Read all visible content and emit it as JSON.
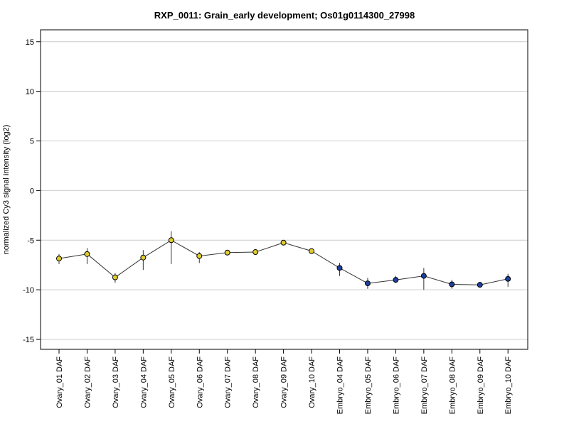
{
  "chart_data": {
    "type": "line",
    "title": "RXP_0011: Grain_early development; Os01g0114300_27998",
    "xlabel": "",
    "ylabel": "normalized Cy3 signal intensity (log2)",
    "ylim": [
      -16,
      16.2
    ],
    "yticks": [
      -15,
      -10,
      -5,
      0,
      5,
      10,
      15
    ],
    "grid": true,
    "categories": [
      "Ovary_01 DAF",
      "Ovary_02 DAF",
      "Ovary_03 DAF",
      "Ovary_04 DAF",
      "Ovary_05 DAF",
      "Ovary_06 DAF",
      "Ovary_07 DAF",
      "Ovary_08 DAF",
      "Ovary_09 DAF",
      "Ovary_10 DAF",
      "Embryo_04 DAF",
      "Embryo_05 DAF",
      "Embryo_06 DAF",
      "Embryo_07 DAF",
      "Embryo_08 DAF",
      "Embryo_09 DAF",
      "Embryo_10 DAF"
    ],
    "values": [
      -6.85,
      -6.4,
      -8.75,
      -6.75,
      -5.0,
      -6.6,
      -6.25,
      -6.2,
      -5.25,
      -6.1,
      -7.8,
      -9.35,
      -9.0,
      -8.6,
      -9.45,
      -9.5,
      -8.9
    ],
    "error_low": [
      -7.4,
      -7.4,
      -9.3,
      -8.0,
      -7.4,
      -7.3,
      -6.25,
      -6.2,
      -5.25,
      -6.1,
      -8.6,
      -9.9,
      -9.3,
      -10.0,
      -9.9,
      -9.5,
      -9.7
    ],
    "error_high": [
      -6.4,
      -5.8,
      -8.3,
      -6.0,
      -4.1,
      -6.2,
      -6.25,
      -6.2,
      -5.25,
      -6.1,
      -7.3,
      -8.8,
      -8.6,
      -7.8,
      -9.0,
      -9.5,
      -8.4
    ],
    "point_colors": [
      "#e0cd2a",
      "#e0cd2a",
      "#e0cd2a",
      "#e0cd2a",
      "#e0cd2a",
      "#e0cd2a",
      "#e0cd2a",
      "#e0cd2a",
      "#e0cd2a",
      "#e0cd2a",
      "#1f3fa0",
      "#1f3fa0",
      "#1f3fa0",
      "#1f3fa0",
      "#1f3fa0",
      "#1f3fa0",
      "#1f3fa0"
    ],
    "line_color": "#333333",
    "grid_color": "#cccccc"
  }
}
